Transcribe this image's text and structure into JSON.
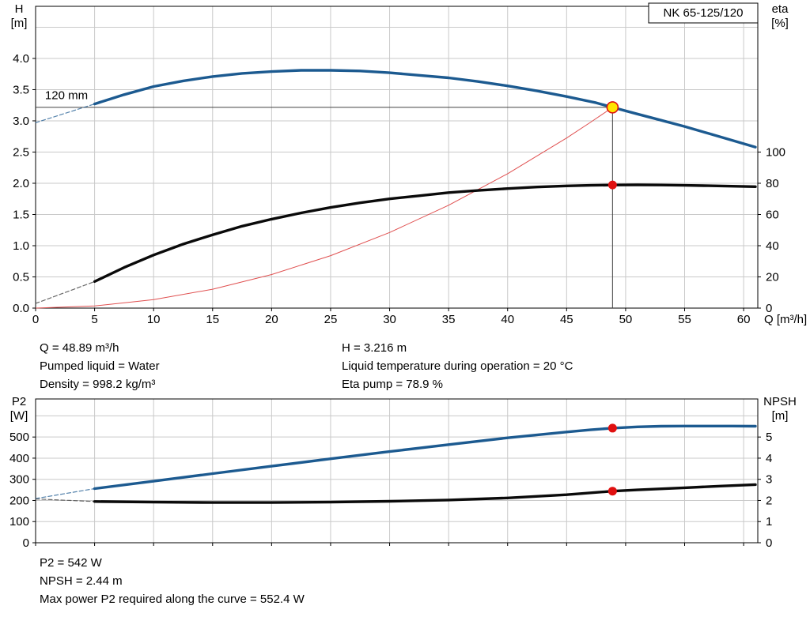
{
  "pump_model": "NK 65-125/120",
  "duty_info": {
    "left": [
      "Q = 48.89 m³/h",
      "Pumped liquid = Water",
      "Density = 998.2 kg/m³"
    ],
    "right": [
      "H = 3.216 m",
      "Liquid temperature during operation = 20 °C",
      "Eta pump = 78.9 %"
    ]
  },
  "result_info": [
    "P2 = 542 W",
    "NPSH = 2.44 m",
    "Max power P2 required along the curve = 552.4 W"
  ],
  "chart_data": [
    {
      "type": "line",
      "title": "NK 65-125/120",
      "box": {
        "x0": 45,
        "y0": 8,
        "x1": 958,
        "y1": 390
      },
      "x_axis": {
        "label": "Q [m³/h]",
        "min": 0,
        "max": 61.2,
        "show_labels": true,
        "ticks": [
          0,
          5,
          10,
          15,
          20,
          25,
          30,
          35,
          40,
          45,
          50,
          55,
          60
        ],
        "grid": [
          5,
          10,
          15,
          20,
          25,
          30,
          35,
          40,
          45,
          50,
          55,
          60
        ]
      },
      "left_axis": {
        "label": "H [m]",
        "min": 0,
        "max": 4.835,
        "decimals": 1,
        "ticks": [
          0,
          0.5,
          1,
          1.5,
          2,
          2.5,
          3,
          3.5,
          4
        ],
        "grid": [
          0.5,
          1,
          1.5,
          2,
          2.5,
          3,
          3.5,
          4,
          4.5
        ]
      },
      "right_axis": {
        "label": "eta [%]",
        "min": 0,
        "max": 193.4,
        "decimals": 0,
        "ticks": [
          0,
          20,
          40,
          60,
          80,
          100
        ]
      },
      "lines": [
        {
          "axis": "left",
          "x1": 48.89,
          "x2": 48.89,
          "y1": 0,
          "y2": 3.216,
          "color": "#404040"
        },
        {
          "axis": "left",
          "x1": 0,
          "x2": 48.89,
          "y1": 3.216,
          "y2": 3.216,
          "color": "#404040"
        }
      ],
      "series": [
        {
          "name": "system-curve",
          "axis": "left",
          "color": "#e05050",
          "width": 1,
          "points": [
            [
              0,
              0
            ],
            [
              5,
              0.034
            ],
            [
              10,
              0.135
            ],
            [
              15,
              0.303
            ],
            [
              20,
              0.538
            ],
            [
              25,
              0.841
            ],
            [
              30,
              1.211
            ],
            [
              35,
              1.648
            ],
            [
              40,
              2.153
            ],
            [
              45,
              2.725
            ],
            [
              47,
              2.975
            ],
            [
              48.89,
              3.216
            ]
          ]
        },
        {
          "name": "efficiency-curve-extension",
          "axis": "right",
          "color": "#444444",
          "width": 1.2,
          "dash": "5 3",
          "opacity": 0.8,
          "points": [
            [
              0,
              3
            ],
            [
              5,
              17
            ]
          ]
        },
        {
          "name": "efficiency-curve",
          "axis": "right",
          "color": "#0a0a0a",
          "width": 3.4,
          "points": [
            [
              5,
              17
            ],
            [
              7.5,
              26
            ],
            [
              10,
              34
            ],
            [
              12.5,
              41
            ],
            [
              15,
              47
            ],
            [
              17.5,
              52.5
            ],
            [
              20,
              57
            ],
            [
              22.5,
              61
            ],
            [
              25,
              64.5
            ],
            [
              27.5,
              67.5
            ],
            [
              30,
              70
            ],
            [
              32.5,
              72
            ],
            [
              35,
              74
            ],
            [
              37.5,
              75.4
            ],
            [
              40,
              76.6
            ],
            [
              42.5,
              77.6
            ],
            [
              45,
              78.3
            ],
            [
              47,
              78.7
            ],
            [
              48.89,
              78.9
            ],
            [
              51,
              79
            ],
            [
              53,
              78.9
            ],
            [
              55,
              78.7
            ],
            [
              57,
              78.4
            ],
            [
              59,
              78.1
            ],
            [
              61,
              77.8
            ]
          ]
        },
        {
          "name": "pump-curve-extension",
          "axis": "left",
          "color": "#1c5a90",
          "width": 1.2,
          "dash": "5 3",
          "opacity": 0.75,
          "points": [
            [
              0,
              2.97
            ],
            [
              5,
              3.27
            ]
          ]
        },
        {
          "name": "pump-curve-120mm",
          "axis": "left",
          "color": "#1c5a90",
          "width": 3.4,
          "points": [
            [
              5,
              3.27
            ],
            [
              7.5,
              3.42
            ],
            [
              10,
              3.55
            ],
            [
              12.5,
              3.64
            ],
            [
              15,
              3.71
            ],
            [
              17.5,
              3.76
            ],
            [
              20,
              3.79
            ],
            [
              22.5,
              3.81
            ],
            [
              25,
              3.81
            ],
            [
              27.5,
              3.8
            ],
            [
              30,
              3.77
            ],
            [
              32.5,
              3.73
            ],
            [
              35,
              3.69
            ],
            [
              37.5,
              3.63
            ],
            [
              40,
              3.56
            ],
            [
              42.5,
              3.48
            ],
            [
              45,
              3.39
            ],
            [
              47.5,
              3.29
            ],
            [
              48.89,
              3.216
            ],
            [
              51,
              3.11
            ],
            [
              53,
              3.01
            ],
            [
              55,
              2.91
            ],
            [
              57,
              2.8
            ],
            [
              59,
              2.69
            ],
            [
              61,
              2.58
            ]
          ]
        }
      ],
      "markers": [
        {
          "name": "duty-point-marker",
          "axis": "left",
          "x": 48.89,
          "y": 3.216,
          "r": 7,
          "fill": "#ffe400",
          "stroke": "#dd1111"
        },
        {
          "name": "efficiency-point-marker",
          "axis": "right",
          "x": 48.89,
          "y": 78.9,
          "r": 5.5,
          "fill": "#e01010"
        }
      ],
      "labels": [
        {
          "name": "impeller-diameter-label",
          "axis": "left",
          "x": 0.8,
          "y": 3.35,
          "text": "120 mm"
        }
      ]
    },
    {
      "type": "line",
      "box": {
        "x0": 45,
        "y0": 8,
        "x1": 958,
        "y1": 190
      },
      "x_axis": {
        "label": "",
        "min": 0,
        "max": 61.2,
        "show_labels": false,
        "ticks": [
          0,
          5,
          10,
          15,
          20,
          25,
          30,
          35,
          40,
          45,
          50,
          55,
          60
        ],
        "grid": [
          5,
          10,
          15,
          20,
          25,
          30,
          35,
          40,
          45,
          50,
          55,
          60
        ]
      },
      "left_axis": {
        "label": "P2 [W]",
        "min": 0,
        "max": 680,
        "decimals": 0,
        "ticks": [
          0,
          100,
          200,
          300,
          400,
          500
        ],
        "grid": [
          100,
          200,
          300,
          400,
          500,
          600
        ]
      },
      "right_axis": {
        "label": "NPSH [m]",
        "min": 0,
        "max": 6.8,
        "decimals": 0,
        "ticks": [
          0,
          1,
          2,
          3,
          4,
          5
        ]
      },
      "series": [
        {
          "name": "p2-curve-extension",
          "axis": "left",
          "color": "#1c5a90",
          "width": 1.2,
          "dash": "5 3",
          "opacity": 0.75,
          "points": [
            [
              0,
              209
            ],
            [
              5,
              256
            ]
          ]
        },
        {
          "name": "npsh-curve-extension",
          "axis": "right",
          "color": "#444444",
          "width": 1.2,
          "dash": "5 3",
          "opacity": 0.8,
          "points": [
            [
              0,
              2.07
            ],
            [
              5,
              1.95
            ]
          ]
        },
        {
          "name": "p2-curve",
          "axis": "left",
          "color": "#1c5a90",
          "width": 3.4,
          "points": [
            [
              5,
              256
            ],
            [
              10,
              291
            ],
            [
              15,
              327
            ],
            [
              20,
              362
            ],
            [
              25,
              397
            ],
            [
              30,
              431
            ],
            [
              35,
              464
            ],
            [
              40,
              496
            ],
            [
              45,
              524
            ],
            [
              47,
              534
            ],
            [
              48.89,
              542
            ],
            [
              51,
              548
            ],
            [
              53,
              551
            ],
            [
              55,
              552
            ],
            [
              57,
              552
            ],
            [
              59,
              552
            ],
            [
              61,
              551
            ]
          ]
        },
        {
          "name": "npsh-curve",
          "axis": "right",
          "color": "#0a0a0a",
          "width": 3.4,
          "points": [
            [
              5,
              1.95
            ],
            [
              10,
              1.92
            ],
            [
              15,
              1.9
            ],
            [
              20,
              1.9
            ],
            [
              25,
              1.92
            ],
            [
              30,
              1.96
            ],
            [
              35,
              2.02
            ],
            [
              40,
              2.12
            ],
            [
              45,
              2.27
            ],
            [
              48.89,
              2.44
            ],
            [
              51,
              2.5
            ],
            [
              55,
              2.6
            ],
            [
              58,
              2.68
            ],
            [
              61,
              2.75
            ]
          ]
        }
      ],
      "markers": [
        {
          "name": "p2-point-marker",
          "axis": "left",
          "x": 48.89,
          "y": 542,
          "r": 5.5,
          "fill": "#e01010"
        },
        {
          "name": "npsh-point-marker",
          "axis": "right",
          "x": 48.89,
          "y": 2.44,
          "r": 5.5,
          "fill": "#e01010"
        }
      ]
    }
  ]
}
